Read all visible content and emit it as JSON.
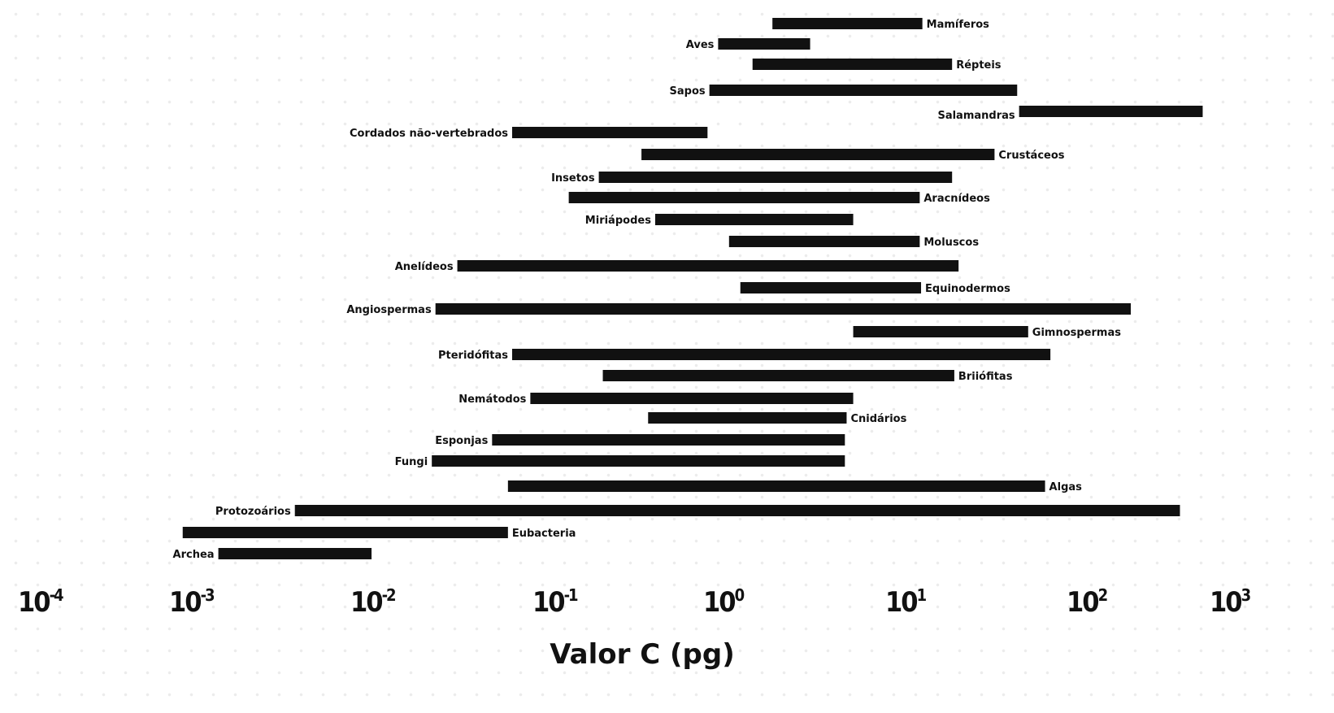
{
  "chart_data": {
    "type": "bar",
    "orientation": "horizontal-range",
    "xscale": "log",
    "xlim": [
      0.0001,
      1000
    ],
    "xlabel": "Valor C (pg)",
    "ylabel": "",
    "title": "",
    "grid": false,
    "bar_color": "#111111",
    "xticks": [
      {
        "base": "10",
        "exp": "-4"
      },
      {
        "base": "10",
        "exp": "-3"
      },
      {
        "base": "10",
        "exp": "-2"
      },
      {
        "base": "10",
        "exp": "-1"
      },
      {
        "base": "10",
        "exp": "0"
      },
      {
        "base": "10",
        "exp": "1"
      },
      {
        "base": "10",
        "exp": "2"
      },
      {
        "base": "10",
        "exp": "3"
      }
    ],
    "series": [
      {
        "name": "Mamíferos",
        "min": 1.8,
        "max": 12,
        "label_side": "right"
      },
      {
        "name": "Aves",
        "min": 0.9,
        "max": 2.9,
        "label_side": "left"
      },
      {
        "name": "Répteis",
        "min": 1.4,
        "max": 17.5,
        "label_side": "right"
      },
      {
        "name": "Sapos",
        "min": 0.8,
        "max": 40,
        "label_side": "left"
      },
      {
        "name": "Salamandras",
        "min": 41,
        "max": 620,
        "label_side": "left"
      },
      {
        "name": "Cordados não-vertebrados",
        "min": 0.058,
        "max": 0.78,
        "label_side": "left"
      },
      {
        "name": "Crustáceos",
        "min": 0.32,
        "max": 30,
        "label_side": "right"
      },
      {
        "name": "Insetos",
        "min": 0.18,
        "max": 17.5,
        "label_side": "left"
      },
      {
        "name": "Aracnídeos",
        "min": 0.12,
        "max": 11.6,
        "label_side": "right"
      },
      {
        "name": "Miriápodes",
        "min": 0.385,
        "max": 5.0,
        "label_side": "left"
      },
      {
        "name": "Moluscos",
        "min": 1.04,
        "max": 11.6,
        "label_side": "right"
      },
      {
        "name": "Anelídeos",
        "min": 0.029,
        "max": 19,
        "label_side": "left"
      },
      {
        "name": "Equinodermos",
        "min": 1.2,
        "max": 11.8,
        "label_side": "right"
      },
      {
        "name": "Angiospermas",
        "min": 0.022,
        "max": 195,
        "label_side": "left"
      },
      {
        "name": "Gimnospermas",
        "min": 5.0,
        "max": 46,
        "label_side": "right"
      },
      {
        "name": "Pteridófitas",
        "min": 0.058,
        "max": 61,
        "label_side": "left"
      },
      {
        "name": "Briiófitas",
        "min": 0.19,
        "max": 18,
        "label_side": "right"
      },
      {
        "name": "Nemátodos",
        "min": 0.073,
        "max": 5.0,
        "label_side": "left"
      },
      {
        "name": "Cnidários",
        "min": 0.35,
        "max": 4.6,
        "label_side": "right"
      },
      {
        "name": "Esponjas",
        "min": 0.045,
        "max": 4.5,
        "label_side": "left"
      },
      {
        "name": "Fungi",
        "min": 0.021,
        "max": 4.5,
        "label_side": "left"
      },
      {
        "name": "Algas",
        "min": 0.055,
        "max": 57,
        "label_side": "right"
      },
      {
        "name": "Protozoários",
        "min": 0.0037,
        "max": 430,
        "label_side": "left"
      },
      {
        "name": "Eubacteria",
        "min": 0.00087,
        "max": 0.055,
        "label_side": "right"
      },
      {
        "name": "Archea",
        "min": 0.0014,
        "max": 0.0098,
        "label_side": "left"
      }
    ]
  }
}
